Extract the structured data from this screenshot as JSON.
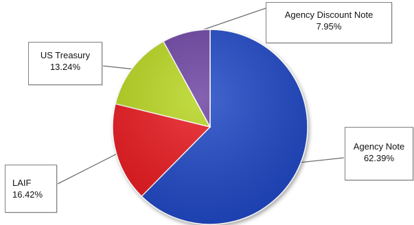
{
  "chart_data": {
    "type": "pie",
    "title": "",
    "slices": [
      {
        "label": "Agency Note",
        "value": 62.39,
        "display": "62.39%",
        "color": "#1a44c4"
      },
      {
        "label": "LAIF",
        "value": 16.42,
        "display": "16.42%",
        "color": "#e8161c"
      },
      {
        "label": "US Treasury",
        "value": 13.24,
        "display": "13.24%",
        "color": "#b6d51c"
      },
      {
        "label": "Agency Discount Note",
        "value": 7.95,
        "display": "7.95%",
        "color": "#6a3fa0"
      }
    ],
    "start_angle_deg": 0,
    "direction": "clockwise",
    "legend": "none",
    "labels": "callouts with leader lines"
  }
}
